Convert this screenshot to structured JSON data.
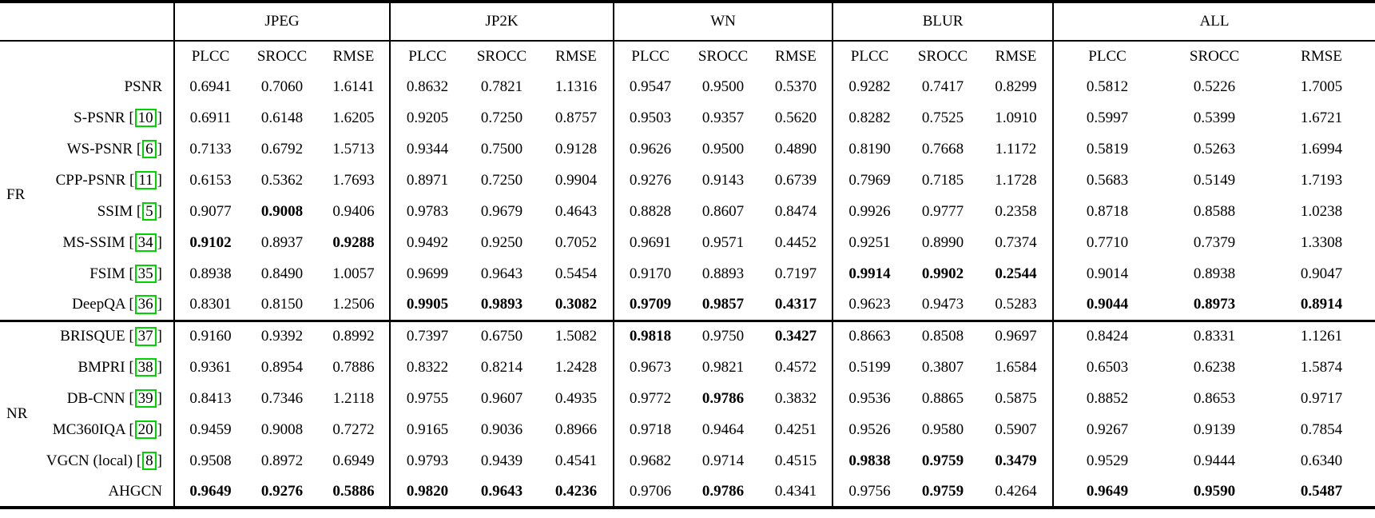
{
  "colors": {
    "citation_box_green": "#00d300",
    "text": "#000000",
    "background": "#ffffff",
    "rule": "#000000"
  },
  "table": {
    "groups": [
      {
        "name": "JPEG"
      },
      {
        "name": "JP2K"
      },
      {
        "name": "WN"
      },
      {
        "name": "BLUR"
      },
      {
        "name": "ALL"
      }
    ],
    "metrics": [
      "PLCC",
      "SROCC",
      "RMSE"
    ],
    "sections": [
      {
        "label": "FR",
        "rows": [
          {
            "method": "PSNR",
            "cite": null,
            "values": [
              "0.6941",
              "0.7060",
              "1.6141",
              "0.8632",
              "0.7821",
              "1.1316",
              "0.9547",
              "0.9500",
              "0.5370",
              "0.9282",
              "0.7417",
              "0.8299",
              "0.5812",
              "0.5226",
              "1.7005"
            ],
            "bold": []
          },
          {
            "method": "S-PSNR",
            "cite": "10",
            "values": [
              "0.6911",
              "0.6148",
              "1.6205",
              "0.9205",
              "0.7250",
              "0.8757",
              "0.9503",
              "0.9357",
              "0.5620",
              "0.8282",
              "0.7525",
              "1.0910",
              "0.5997",
              "0.5399",
              "1.6721"
            ],
            "bold": []
          },
          {
            "method": "WS-PSNR",
            "cite": "6",
            "values": [
              "0.7133",
              "0.6792",
              "1.5713",
              "0.9344",
              "0.7500",
              "0.9128",
              "0.9626",
              "0.9500",
              "0.4890",
              "0.8190",
              "0.7668",
              "1.1172",
              "0.5819",
              "0.5263",
              "1.6994"
            ],
            "bold": []
          },
          {
            "method": "CPP-PSNR",
            "cite": "11",
            "values": [
              "0.6153",
              "0.5362",
              "1.7693",
              "0.8971",
              "0.7250",
              "0.9904",
              "0.9276",
              "0.9143",
              "0.6739",
              "0.7969",
              "0.7185",
              "1.1728",
              "0.5683",
              "0.5149",
              "1.7193"
            ],
            "bold": []
          },
          {
            "method": "SSIM",
            "cite": "5",
            "values": [
              "0.9077",
              "0.9008",
              "0.9406",
              "0.9783",
              "0.9679",
              "0.4643",
              "0.8828",
              "0.8607",
              "0.8474",
              "0.9926",
              "0.9777",
              "0.2358",
              "0.8718",
              "0.8588",
              "1.0238"
            ],
            "bold": [
              1
            ]
          },
          {
            "method": "MS-SSIM",
            "cite": "34",
            "values": [
              "0.9102",
              "0.8937",
              "0.9288",
              "0.9492",
              "0.9250",
              "0.7052",
              "0.9691",
              "0.9571",
              "0.4452",
              "0.9251",
              "0.8990",
              "0.7374",
              "0.7710",
              "0.7379",
              "1.3308"
            ],
            "bold": [
              0,
              2
            ]
          },
          {
            "method": "FSIM",
            "cite": "35",
            "values": [
              "0.8938",
              "0.8490",
              "1.0057",
              "0.9699",
              "0.9643",
              "0.5454",
              "0.9170",
              "0.8893",
              "0.7197",
              "0.9914",
              "0.9902",
              "0.2544",
              "0.9014",
              "0.8938",
              "0.9047"
            ],
            "bold": [
              9,
              10,
              11
            ]
          },
          {
            "method": "DeepQA",
            "cite": "36",
            "values": [
              "0.8301",
              "0.8150",
              "1.2506",
              "0.9905",
              "0.9893",
              "0.3082",
              "0.9709",
              "0.9857",
              "0.4317",
              "0.9623",
              "0.9473",
              "0.5283",
              "0.9044",
              "0.8973",
              "0.8914"
            ],
            "bold": [
              3,
              4,
              5,
              6,
              7,
              8,
              12,
              13,
              14
            ]
          }
        ]
      },
      {
        "label": "NR",
        "rows": [
          {
            "method": "BRISQUE",
            "cite": "37",
            "values": [
              "0.9160",
              "0.9392",
              "0.8992",
              "0.7397",
              "0.6750",
              "1.5082",
              "0.9818",
              "0.9750",
              "0.3427",
              "0.8663",
              "0.8508",
              "0.9697",
              "0.8424",
              "0.8331",
              "1.1261"
            ],
            "bold": [
              6,
              8
            ]
          },
          {
            "method": "BMPRI",
            "cite": "38",
            "values": [
              "0.9361",
              "0.8954",
              "0.7886",
              "0.8322",
              "0.8214",
              "1.2428",
              "0.9673",
              "0.9821",
              "0.4572",
              "0.5199",
              "0.3807",
              "1.6584",
              "0.6503",
              "0.6238",
              "1.5874"
            ],
            "bold": []
          },
          {
            "method": "DB-CNN",
            "cite": "39",
            "values": [
              "0.8413",
              "0.7346",
              "1.2118",
              "0.9755",
              "0.9607",
              "0.4935",
              "0.9772",
              "0.9786",
              "0.3832",
              "0.9536",
              "0.8865",
              "0.5875",
              "0.8852",
              "0.8653",
              "0.9717"
            ],
            "bold": [
              7
            ]
          },
          {
            "method": "MC360IQA",
            "cite": "20",
            "values": [
              "0.9459",
              "0.9008",
              "0.7272",
              "0.9165",
              "0.9036",
              "0.8966",
              "0.9718",
              "0.9464",
              "0.4251",
              "0.9526",
              "0.9580",
              "0.5907",
              "0.9267",
              "0.9139",
              "0.7854"
            ],
            "bold": []
          },
          {
            "method": "VGCN (local)",
            "cite": "8",
            "values": [
              "0.9508",
              "0.8972",
              "0.6949",
              "0.9793",
              "0.9439",
              "0.4541",
              "0.9682",
              "0.9714",
              "0.4515",
              "0.9838",
              "0.9759",
              "0.3479",
              "0.9529",
              "0.9444",
              "0.6340"
            ],
            "bold": [
              9,
              10,
              11
            ]
          },
          {
            "method": "AHGCN",
            "cite": null,
            "values": [
              "0.9649",
              "0.9276",
              "0.5886",
              "0.9820",
              "0.9643",
              "0.4236",
              "0.9706",
              "0.9786",
              "0.4341",
              "0.9756",
              "0.9759",
              "0.4264",
              "0.9649",
              "0.9590",
              "0.5487"
            ],
            "bold": [
              0,
              1,
              2,
              3,
              4,
              5,
              7,
              10,
              12,
              13,
              14
            ]
          }
        ]
      }
    ]
  }
}
